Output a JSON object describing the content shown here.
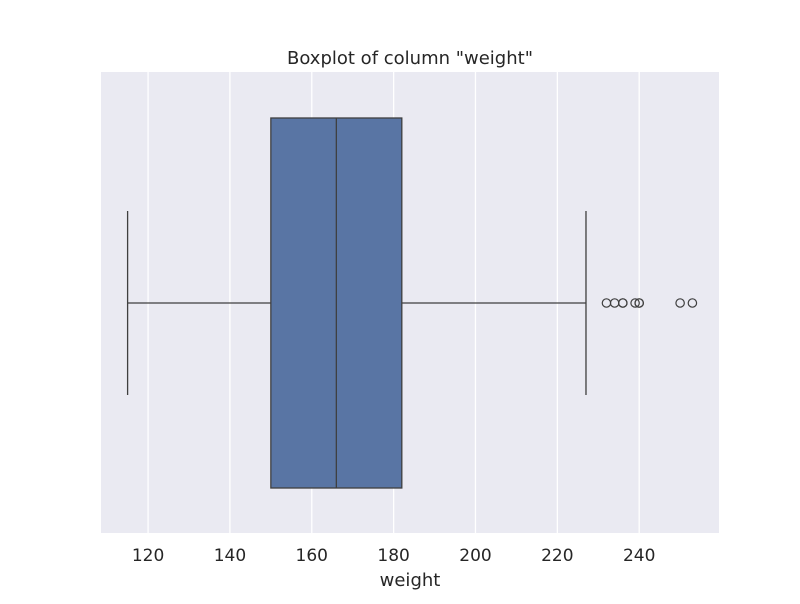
{
  "chart_data": {
    "type": "boxplot",
    "title": "Boxplot of column \"weight\"",
    "xlabel": "weight",
    "ylabel": "",
    "orientation": "horizontal",
    "xlim": [
      108.5,
      259.5
    ],
    "xticks": [
      120,
      140,
      160,
      180,
      200,
      220,
      240
    ],
    "grid": true,
    "box": {
      "whisker_low": 115,
      "q1": 150,
      "median": 166,
      "q3": 182,
      "whisker_high": 227
    },
    "outliers": [
      232,
      234,
      236,
      236,
      239,
      240,
      240,
      250,
      253
    ],
    "colors": {
      "box_fill": "#5975a4",
      "box_edge": "#3f3f3f",
      "plot_background": "#eaeaf2",
      "grid": "#ffffff"
    }
  }
}
